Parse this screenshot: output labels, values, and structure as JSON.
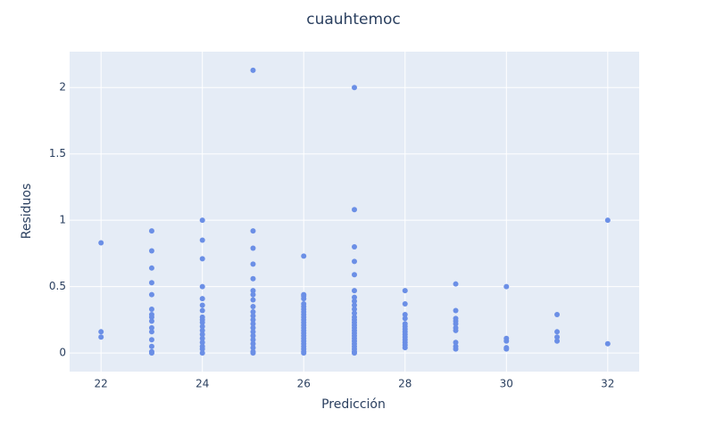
{
  "chart_data": {
    "type": "scatter",
    "title": "cuauhtemoc",
    "x_label": "Predicción",
    "y_label": "Residuos",
    "color": "#6b8fe6",
    "grid": true,
    "xlim": [
      21.38,
      32.62
    ],
    "ylim": [
      -0.14,
      2.27
    ],
    "xticks": [
      22,
      24,
      26,
      28,
      30,
      32
    ],
    "yticks": [
      0,
      0.5,
      1,
      1.5,
      2
    ],
    "x": [
      22,
      22,
      22,
      23,
      23,
      23,
      23,
      23,
      23,
      23,
      23,
      23,
      23,
      23,
      23,
      23,
      23,
      23,
      24,
      24,
      24,
      24,
      24,
      24,
      24,
      24,
      24,
      24,
      24,
      24,
      24,
      24,
      24,
      24,
      24,
      24,
      25,
      25,
      25,
      25,
      25,
      25,
      25,
      25,
      25,
      25,
      25,
      25,
      25,
      25,
      25,
      25,
      25,
      25,
      25,
      25,
      25,
      26,
      26,
      26,
      26,
      26,
      26,
      26,
      26,
      26,
      26,
      26,
      26,
      26,
      26,
      26,
      26,
      26,
      26,
      26,
      26,
      26,
      26,
      26,
      26,
      27,
      27,
      27,
      27,
      27,
      27,
      27,
      27,
      27,
      27,
      27,
      27,
      27,
      27,
      27,
      27,
      27,
      27,
      27,
      27,
      27,
      27,
      27,
      27,
      27,
      27,
      28,
      28,
      28,
      28,
      28,
      28,
      28,
      28,
      28,
      28,
      28,
      28,
      28,
      28,
      29,
      29,
      29,
      29,
      29,
      29,
      29,
      29,
      29,
      29,
      30,
      30,
      30,
      30,
      30,
      31,
      31,
      31,
      31,
      32,
      32
    ],
    "y": [
      0.83,
      0.16,
      0.12,
      0.92,
      0.77,
      0.64,
      0.53,
      0.44,
      0.33,
      0.29,
      0.27,
      0.24,
      0.19,
      0.16,
      0.1,
      0.05,
      0.01,
      0,
      1,
      0.85,
      0.71,
      0.5,
      0.41,
      0.36,
      0.32,
      0.27,
      0.25,
      0.23,
      0.2,
      0.17,
      0.14,
      0.11,
      0.08,
      0.05,
      0.03,
      0,
      2.13,
      0.92,
      0.79,
      0.67,
      0.56,
      0.47,
      0.44,
      0.4,
      0.35,
      0.31,
      0.28,
      0.25,
      0.22,
      0.19,
      0.16,
      0.13,
      0.1,
      0.07,
      0.04,
      0.01,
      0,
      0.73,
      0.44,
      0.43,
      0.41,
      0.37,
      0.35,
      0.33,
      0.31,
      0.29,
      0.27,
      0.25,
      0.23,
      0.21,
      0.19,
      0.17,
      0.15,
      0.13,
      0.11,
      0.09,
      0.07,
      0.05,
      0.03,
      0.01,
      0,
      2,
      1.08,
      0.8,
      0.69,
      0.59,
      0.47,
      0.42,
      0.39,
      0.36,
      0.33,
      0.3,
      0.27,
      0.25,
      0.23,
      0.21,
      0.19,
      0.17,
      0.15,
      0.13,
      0.11,
      0.09,
      0.07,
      0.05,
      0.03,
      0.01,
      0,
      0.47,
      0.37,
      0.29,
      0.26,
      0.22,
      0.2,
      0.18,
      0.16,
      0.14,
      0.12,
      0.1,
      0.08,
      0.06,
      0.04,
      0.52,
      0.32,
      0.26,
      0.24,
      0.22,
      0.19,
      0.17,
      0.08,
      0.05,
      0.03,
      0.5,
      0.11,
      0.09,
      0.04,
      0.03,
      0.29,
      0.16,
      0.12,
      0.09,
      1,
      0.07
    ]
  }
}
